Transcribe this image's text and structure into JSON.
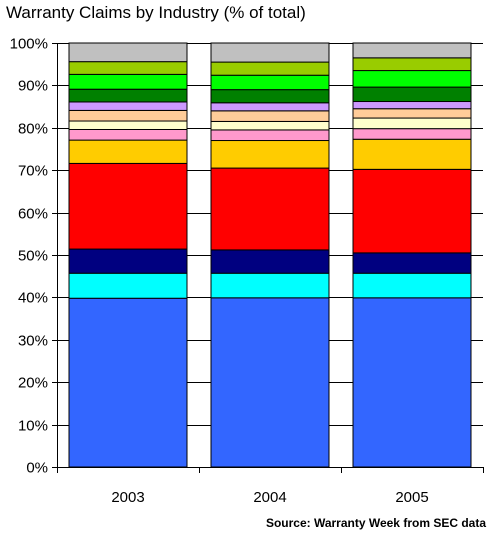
{
  "chart_data": {
    "type": "bar",
    "stacked": true,
    "title": "Warranty Claims by Industry (% of total)",
    "source": "Source: Warranty Week from SEC data",
    "categories": [
      "2003",
      "2004",
      "2005"
    ],
    "ylim": [
      0,
      100
    ],
    "yticks": [
      "0%",
      "10%",
      "20%",
      "30%",
      "40%",
      "50%",
      "60%",
      "70%",
      "80%",
      "90%",
      "100%"
    ],
    "grid": true,
    "legend": "none",
    "series": [
      {
        "color": "#3366ff",
        "values": [
          39.8,
          39.9,
          39.9
        ]
      },
      {
        "color": "#00ffff",
        "values": [
          5.9,
          5.8,
          5.8
        ]
      },
      {
        "color": "#000080",
        "values": [
          5.7,
          5.5,
          4.8
        ]
      },
      {
        "color": "#ff0000",
        "values": [
          20.2,
          19.3,
          19.7
        ]
      },
      {
        "color": "#ffcc00",
        "values": [
          5.5,
          6.5,
          7.1
        ]
      },
      {
        "color": "#ff99cc",
        "values": [
          2.5,
          2.5,
          2.5
        ]
      },
      {
        "color": "#ffffcc",
        "values": [
          2.0,
          2.0,
          2.5
        ]
      },
      {
        "color": "#ffcc99",
        "values": [
          2.5,
          2.5,
          2.2
        ]
      },
      {
        "color": "#cc99ff",
        "values": [
          2.0,
          1.9,
          1.7
        ]
      },
      {
        "color": "#008000",
        "values": [
          3.0,
          3.1,
          3.4
        ]
      },
      {
        "color": "#00ff00",
        "values": [
          3.5,
          3.4,
          3.9
        ]
      },
      {
        "color": "#99cc00",
        "values": [
          3.0,
          3.1,
          3.0
        ]
      },
      {
        "color": "#c0c0c0",
        "values": [
          4.4,
          4.5,
          3.5
        ]
      }
    ]
  }
}
